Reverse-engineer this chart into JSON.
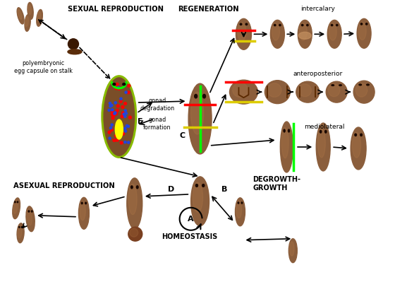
{
  "bg_color": "#ffffff",
  "brown": "#8B5E3C",
  "dark_brown": "#6B3E1E",
  "light_brown": "#B07848",
  "egg_dark": "#3A1800",
  "labels": {
    "sexual_repro": "SEXUAL REPRODUCTION",
    "regeneration": "REGENERATION",
    "asexual_repro": "ASEXUAL REPRODUCTION",
    "homeostasis": "HOMEOSTASIS",
    "degrowth": "DEGROWTH-\nGROWTH",
    "intercalary": "intercalary",
    "anteroposterior": "anteroposterior",
    "mediolateral": "mediolateral",
    "polyembryonic": "polyembryonic\negg capsule on stalk",
    "gonad_deg": "gonad\ndegradation",
    "gonad_form": "gonad\nformation",
    "E": "E",
    "C": "C",
    "A": "A",
    "B": "B",
    "D": "D"
  }
}
